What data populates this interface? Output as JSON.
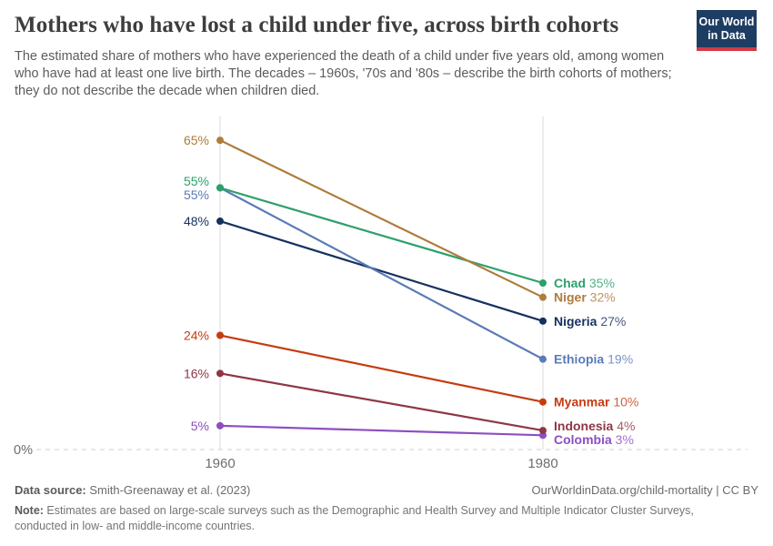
{
  "header": {
    "title": "Mothers who have lost a child under five, across birth cohorts",
    "subtitle": "The estimated share of mothers who have experienced the death of a child under five years old, among women who have had at least one live birth. The decades – 1960s, '70s and '80s – describe the birth cohorts of mothers; they do not describe the decade when children died.",
    "logo": {
      "line1": "Our World",
      "line2": "in Data",
      "bg": "#1d3d63",
      "stripe": "#d23a47"
    }
  },
  "chart_data": {
    "type": "line",
    "subtype": "slope",
    "x": [
      "1960",
      "1980"
    ],
    "xlabel": "",
    "ylabel": "",
    "ylim": [
      0,
      70
    ],
    "baseline_label": "0%",
    "grid": "vertical-at-x-ticks-plus-dashed-zero-line",
    "legend_position": "end-of-line-labels",
    "series": [
      {
        "name": "Niger",
        "color": "#AE7C3C",
        "values": [
          65,
          32
        ]
      },
      {
        "name": "Chad",
        "color": "#2DA06B",
        "values": [
          55,
          35
        ]
      },
      {
        "name": "Ethiopia",
        "color": "#5B7BB8",
        "values": [
          55,
          19
        ]
      },
      {
        "name": "Nigeria",
        "color": "#16305F",
        "values": [
          48,
          27
        ]
      },
      {
        "name": "Myanmar",
        "color": "#C63C12",
        "values": [
          24,
          10
        ]
      },
      {
        "name": "Indonesia",
        "color": "#8E3745",
        "values": [
          16,
          4
        ]
      },
      {
        "name": "Colombia",
        "color": "#8C4FC0",
        "values": [
          5,
          3
        ]
      }
    ]
  },
  "footer": {
    "source_label": "Data source:",
    "source_text": " Smith-Greenaway et al. (2023)",
    "rights": "OurWorldinData.org/child-mortality | CC BY",
    "note_label": "Note:",
    "note_text": " Estimates are based on large-scale surveys such as the Demographic and Health Survey and Multiple Indicator Cluster Surveys, conducted in low- and middle-income countries."
  }
}
